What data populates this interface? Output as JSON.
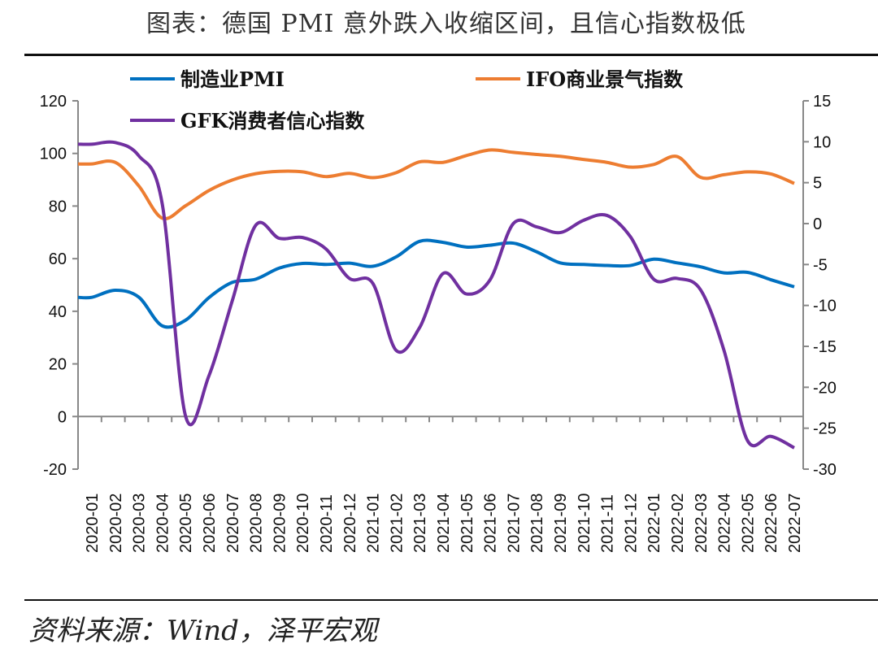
{
  "title": "图表：德国 PMI 意外跌入收缩区间，且信心指数极低",
  "footer": "资料来源：Wind，泽平宏观",
  "chart_data": {
    "type": "line",
    "title": "图表：德国 PMI 意外跌入收缩区间，且信心指数极低",
    "categories": [
      "2020-01",
      "2020-02",
      "2020-03",
      "2020-04",
      "2020-05",
      "2020-06",
      "2020-07",
      "2020-08",
      "2020-09",
      "2020-10",
      "2020-11",
      "2020-12",
      "2021-01",
      "2021-02",
      "2021-03",
      "2021-04",
      "2021-05",
      "2021-06",
      "2021-07",
      "2021-08",
      "2021-09",
      "2021-10",
      "2021-11",
      "2021-12",
      "2022-01",
      "2022-02",
      "2022-03",
      "2022-04",
      "2022-05",
      "2022-06",
      "2022-07"
    ],
    "left_axis": {
      "ylim": [
        -20,
        120
      ],
      "ticks": [
        "120",
        "100",
        "80",
        "60",
        "40",
        "20",
        "0",
        "-20"
      ]
    },
    "right_axis": {
      "ylim": [
        -30,
        15
      ],
      "ticks": [
        "15",
        "10",
        "5",
        "0",
        "-5",
        "-10",
        "-15",
        "-20",
        "-25",
        "-30"
      ]
    },
    "series": [
      {
        "name": "制造业PMI",
        "axis": "left",
        "color": "#0070C0",
        "values": [
          45.3,
          48.0,
          45.4,
          34.5,
          36.6,
          45.2,
          51.0,
          52.2,
          56.4,
          58.2,
          57.8,
          58.3,
          57.1,
          60.7,
          66.6,
          66.2,
          64.4,
          65.1,
          65.9,
          62.6,
          58.4,
          57.8,
          57.4,
          57.4,
          59.8,
          58.4,
          56.9,
          54.6,
          54.8,
          52.0,
          49.3
        ]
      },
      {
        "name": "IFO商业景气指数",
        "axis": "left",
        "color": "#ED7D31",
        "values": [
          96.0,
          96.6,
          87.7,
          75.4,
          80.1,
          85.9,
          89.9,
          92.3,
          93.2,
          93.0,
          91.2,
          92.4,
          90.8,
          92.7,
          96.8,
          96.6,
          99.2,
          101.3,
          100.4,
          99.6,
          98.9,
          97.7,
          96.6,
          94.8,
          95.8,
          98.8,
          90.9,
          91.9,
          93.0,
          92.2,
          88.6
        ]
      },
      {
        "name": "GFK消费者信心指数",
        "axis": "right",
        "color": "#7030A0",
        "values": [
          9.7,
          9.9,
          8.3,
          2.5,
          -23.5,
          -18.6,
          -9.4,
          -0.2,
          -1.8,
          -1.7,
          -3.1,
          -6.7,
          -7.3,
          -15.5,
          -12.7,
          -6.1,
          -8.6,
          -6.9,
          0.0,
          -0.4,
          -1.1,
          0.4,
          1.0,
          -1.6,
          -6.8,
          -6.7,
          -8.1,
          -15.5,
          -26.5,
          -26.0,
          -27.4
        ]
      }
    ],
    "legend_position": "top-left",
    "grid": false
  }
}
